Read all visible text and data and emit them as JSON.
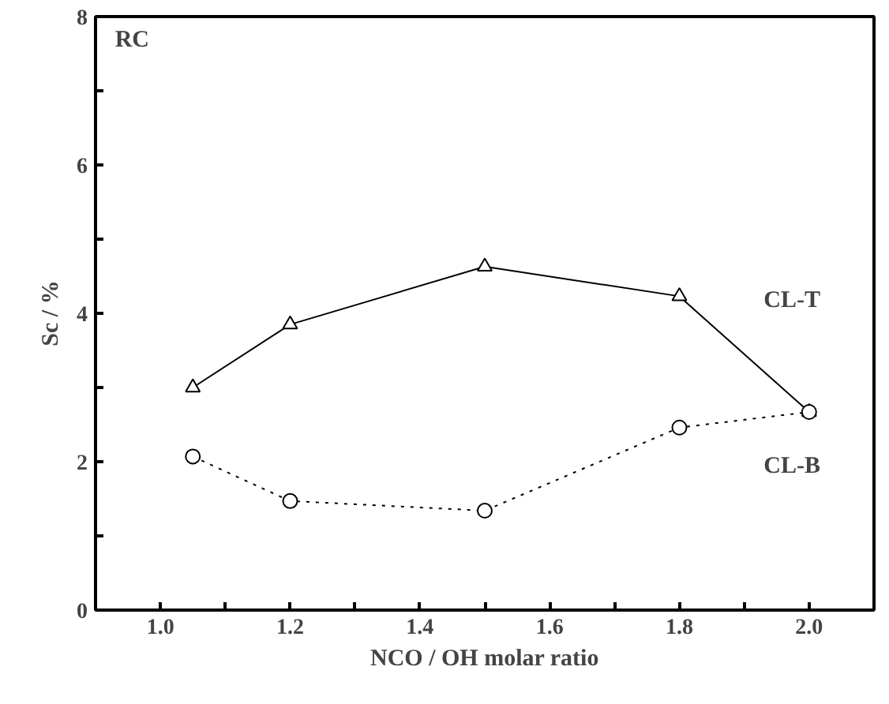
{
  "chart_data": {
    "type": "line",
    "xlabel": "NCO / OH molar ratio",
    "ylabel": "Sc / %",
    "annotations": [
      "RC"
    ],
    "x": [
      1.05,
      1.2,
      1.5,
      1.8,
      2.0
    ],
    "series": [
      {
        "name": "CL-T",
        "color": "#000000",
        "values": [
          3.0,
          3.85,
          4.63,
          4.23,
          2.67
        ],
        "marker": "triangle",
        "line_style": "solid"
      },
      {
        "name": "CL-B",
        "color": "#000000",
        "values": [
          2.07,
          1.47,
          1.34,
          2.46,
          2.67
        ],
        "marker": "circle",
        "line_style": "dotted"
      }
    ],
    "xlim": [
      0.9,
      2.1
    ],
    "xticks": [
      {
        "value": 0.9,
        "label": null
      },
      {
        "value": 1.0,
        "label": "1.0"
      },
      {
        "value": 1.1,
        "label": null
      },
      1.2,
      {
        "value": 1.3,
        "label": null
      },
      1.4,
      {
        "value": 1.5,
        "label": null
      },
      1.6,
      {
        "value": 1.7,
        "label": null
      },
      1.8,
      {
        "value": 1.9,
        "label": null
      },
      {
        "value": 2.0,
        "label": "2.0"
      }
    ],
    "ylim": [
      0,
      8
    ],
    "yticks": [
      0,
      {
        "value": 1,
        "label": null
      },
      2,
      {
        "value": 3,
        "label": null
      },
      4,
      {
        "value": 5,
        "label": null
      },
      6,
      {
        "value": 7,
        "label": null
      },
      8
    ],
    "grid": false
  }
}
